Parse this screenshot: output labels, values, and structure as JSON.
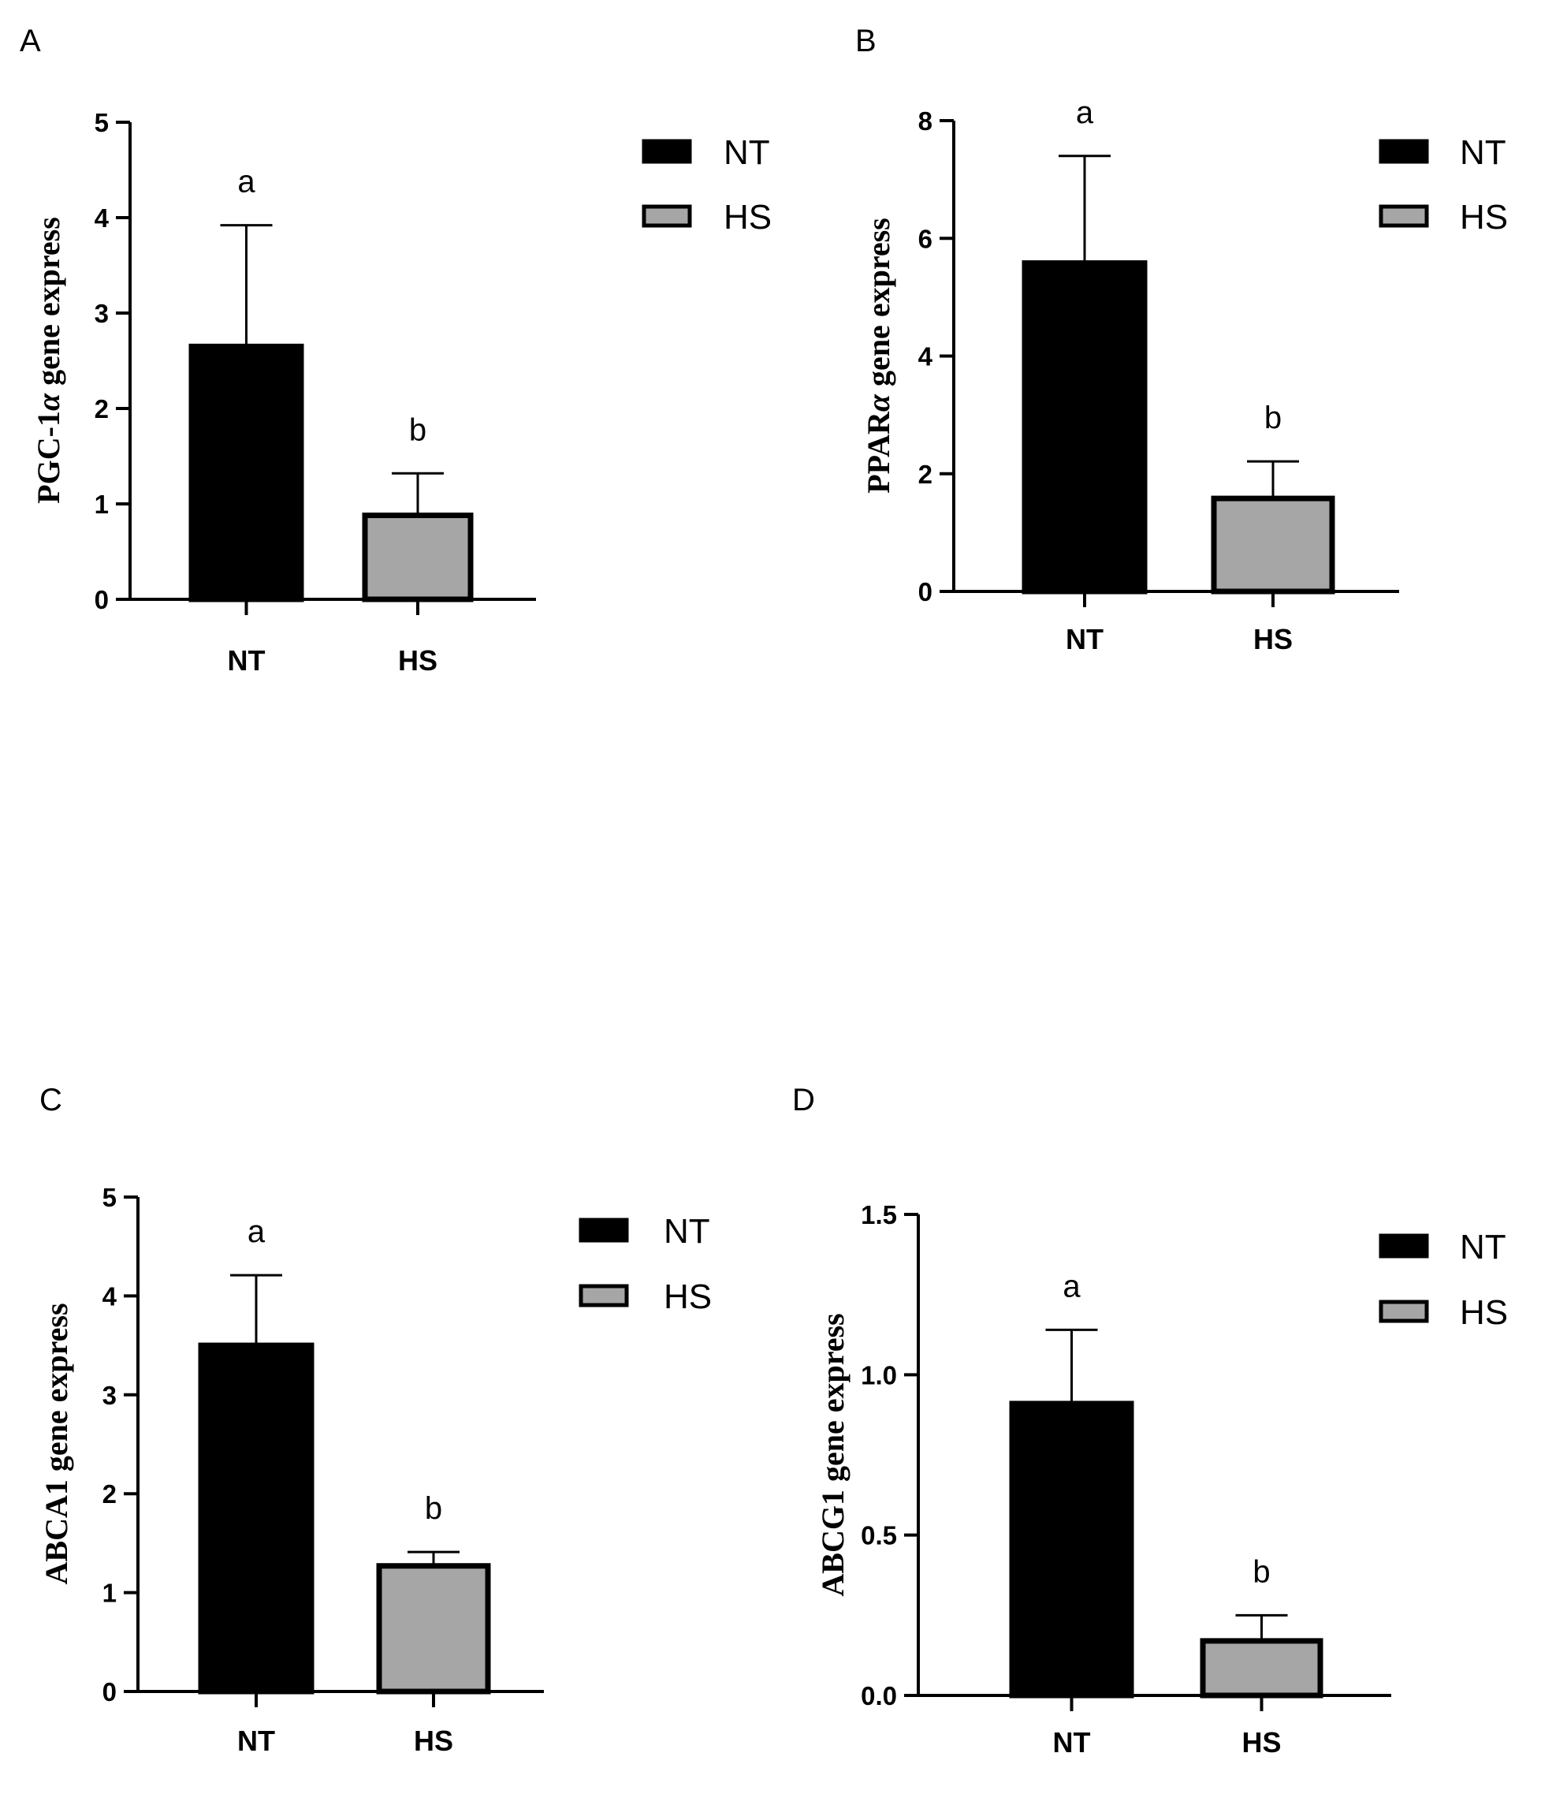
{
  "figure": {
    "legend": {
      "nt": "NT",
      "hs": "HS"
    }
  },
  "colors": {
    "nt": "#000000",
    "hs": "#a6a6a6",
    "outline": "#000000"
  },
  "chart_data": [
    {
      "panel": "A",
      "type": "bar",
      "ylabel_parts": [
        {
          "text": "PGC-1",
          "italic": false
        },
        {
          "text": "α",
          "italic": true
        },
        {
          "text": " gene express",
          "italic": false
        }
      ],
      "categories": [
        "NT",
        "HS"
      ],
      "values": [
        2.65,
        0.88
      ],
      "errors": [
        1.27,
        0.44
      ],
      "significance": [
        "a",
        "b"
      ],
      "ylim": [
        0,
        5
      ],
      "yticks": [
        0,
        1,
        2,
        3,
        4,
        5
      ],
      "ytick_labels": [
        "0",
        "1",
        "2",
        "3",
        "4",
        "5"
      ]
    },
    {
      "panel": "B",
      "type": "bar",
      "ylabel_parts": [
        {
          "text": "PPAR",
          "italic": false
        },
        {
          "text": "α",
          "italic": true
        },
        {
          "text": " gene express",
          "italic": false
        }
      ],
      "categories": [
        "NT",
        "HS"
      ],
      "values": [
        5.58,
        1.58
      ],
      "errors": [
        1.82,
        0.63
      ],
      "significance": [
        "a",
        "b"
      ],
      "ylim": [
        0,
        8
      ],
      "yticks": [
        0,
        2,
        4,
        6,
        8
      ],
      "ytick_labels": [
        "0",
        "2",
        "4",
        "6",
        "8"
      ]
    },
    {
      "panel": "C",
      "type": "bar",
      "ylabel_parts": [
        {
          "text": "ABCA1 gene express",
          "italic": false
        }
      ],
      "categories": [
        "NT",
        "HS"
      ],
      "values": [
        3.5,
        1.27
      ],
      "errors": [
        0.71,
        0.14
      ],
      "significance": [
        "a",
        "b"
      ],
      "ylim": [
        0,
        5
      ],
      "yticks": [
        0,
        1,
        2,
        3,
        4,
        5
      ],
      "ytick_labels": [
        "0",
        "1",
        "2",
        "3",
        "4",
        "5"
      ]
    },
    {
      "panel": "D",
      "type": "bar",
      "ylabel_parts": [
        {
          "text": "ABCG1 gene express",
          "italic": false
        }
      ],
      "categories": [
        "NT",
        "HS"
      ],
      "values": [
        0.91,
        0.17
      ],
      "errors": [
        0.23,
        0.08
      ],
      "significance": [
        "a",
        "b"
      ],
      "ylim": [
        0,
        1.5
      ],
      "yticks": [
        0,
        0.5,
        1.0,
        1.5
      ],
      "ytick_labels": [
        "0.0",
        "0.5",
        "1.0",
        "1.5"
      ]
    }
  ]
}
